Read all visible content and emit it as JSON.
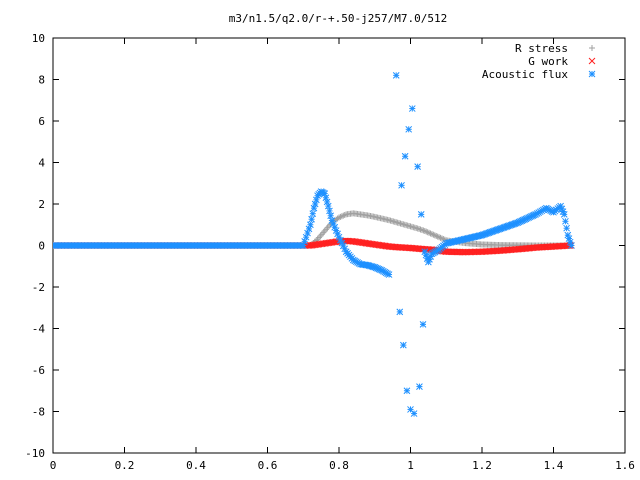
{
  "chart_data": {
    "type": "scatter",
    "title": "m3/n1.5/q2.0/r-+.50-j257/M7.0/512",
    "xlabel": "",
    "ylabel": "",
    "xlim": [
      0,
      1.6
    ],
    "ylim": [
      -10,
      10
    ],
    "x_ticks": [
      "0",
      "0.2",
      "0.4",
      "0.6",
      "0.8",
      "1",
      "1.2",
      "1.4",
      "1.6"
    ],
    "y_ticks": [
      "10",
      "8",
      "6",
      "4",
      "2",
      "0",
      "-2",
      "-4",
      "-6",
      "-8",
      "-10"
    ],
    "grid": false,
    "legend_position": "top-right",
    "series": [
      {
        "name": "R stress",
        "marker": "+",
        "color": "#a0a0a0",
        "x": [
          0.0,
          0.1,
          0.2,
          0.3,
          0.4,
          0.5,
          0.6,
          0.7,
          0.72,
          0.74,
          0.76,
          0.78,
          0.8,
          0.82,
          0.84,
          0.86,
          0.88,
          0.9,
          0.92,
          0.94,
          0.96,
          0.98,
          1.0,
          1.02,
          1.04,
          1.06,
          1.08,
          1.1,
          1.15,
          1.2,
          1.25,
          1.3,
          1.35,
          1.4,
          1.45
        ],
        "y": [
          0,
          0,
          0,
          0,
          0,
          0,
          0,
          0,
          0.0,
          0.3,
          0.7,
          1.1,
          1.35,
          1.5,
          1.55,
          1.5,
          1.45,
          1.38,
          1.3,
          1.22,
          1.12,
          1.02,
          0.92,
          0.82,
          0.7,
          0.55,
          0.4,
          0.25,
          0.12,
          0.05,
          0.02,
          0.01,
          0.0,
          0.0,
          0.0
        ]
      },
      {
        "name": "G work",
        "marker": "x",
        "color": "#ff2020",
        "x": [
          0.0,
          0.1,
          0.2,
          0.3,
          0.4,
          0.5,
          0.6,
          0.7,
          0.72,
          0.74,
          0.76,
          0.78,
          0.8,
          0.82,
          0.84,
          0.86,
          0.88,
          0.9,
          0.92,
          0.94,
          0.96,
          0.98,
          1.0,
          1.02,
          1.04,
          1.06,
          1.08,
          1.1,
          1.15,
          1.2,
          1.25,
          1.3,
          1.35,
          1.4,
          1.45
        ],
        "y": [
          0,
          0,
          0,
          0,
          0,
          0,
          0,
          0,
          0.0,
          0.05,
          0.1,
          0.15,
          0.2,
          0.22,
          0.2,
          0.15,
          0.1,
          0.05,
          0.0,
          -0.05,
          -0.08,
          -0.1,
          -0.12,
          -0.15,
          -0.18,
          -0.2,
          -0.25,
          -0.3,
          -0.32,
          -0.3,
          -0.25,
          -0.18,
          -0.1,
          -0.05,
          0.0
        ]
      },
      {
        "name": "Acoustic flux",
        "marker": "*",
        "color": "#1e90ff",
        "x": [
          0.0,
          0.1,
          0.2,
          0.3,
          0.4,
          0.5,
          0.6,
          0.7,
          0.72,
          0.73,
          0.74,
          0.75,
          0.76,
          0.77,
          0.78,
          0.8,
          0.82,
          0.84,
          0.86,
          0.88,
          0.9,
          0.92,
          0.94,
          0.96,
          0.97,
          0.975,
          0.98,
          0.985,
          0.99,
          0.995,
          1.0,
          1.005,
          1.01,
          1.02,
          1.025,
          1.03,
          1.035,
          1.04,
          1.05,
          1.06,
          1.08,
          1.1,
          1.15,
          1.2,
          1.25,
          1.3,
          1.35,
          1.38,
          1.4,
          1.42,
          1.43,
          1.44,
          1.45
        ],
        "y": [
          0,
          0,
          0,
          0,
          0,
          0,
          0,
          0,
          1.0,
          1.8,
          2.4,
          2.6,
          2.5,
          1.9,
          1.2,
          0.4,
          -0.3,
          -0.7,
          -0.9,
          -0.95,
          -1.05,
          -1.2,
          -1.4,
          8.2,
          -3.2,
          2.9,
          -4.8,
          4.3,
          -7.0,
          5.6,
          -7.9,
          6.6,
          -8.1,
          3.8,
          -6.8,
          1.5,
          -3.8,
          -0.3,
          -0.8,
          -0.4,
          -0.2,
          0.1,
          0.3,
          0.5,
          0.8,
          1.1,
          1.5,
          1.8,
          1.6,
          1.9,
          1.5,
          0.5,
          0.0
        ]
      }
    ]
  }
}
